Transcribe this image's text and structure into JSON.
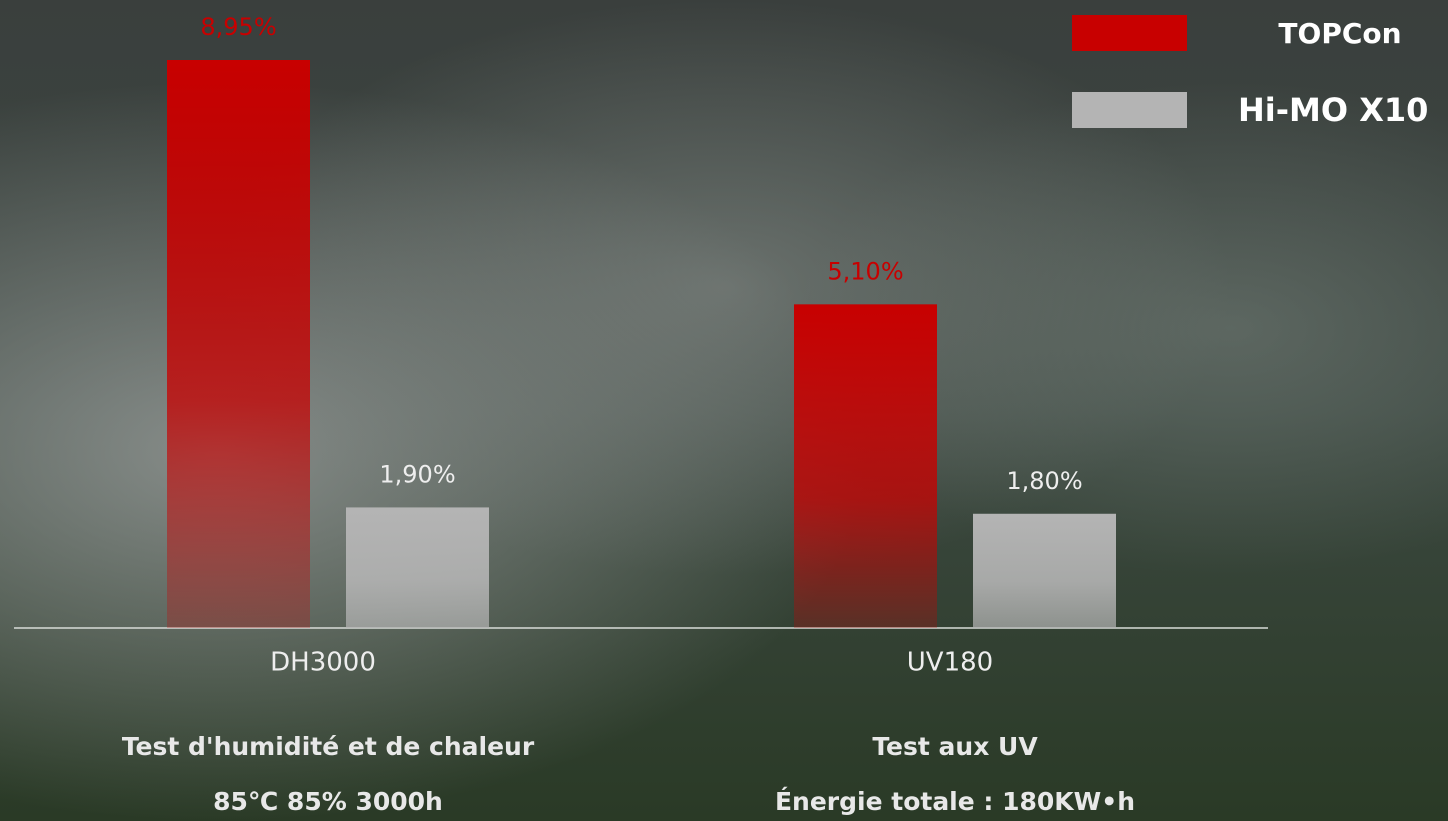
{
  "chart_data": {
    "type": "bar",
    "categories": [
      "DH3000",
      "UV180"
    ],
    "series": [
      {
        "name": "TOPCon",
        "color": "#c80000",
        "values": [
          8.95,
          5.1
        ],
        "value_labels": [
          "8,95%",
          "5,10%"
        ]
      },
      {
        "name": "Hi-MO X10",
        "color": "#b4b4b4",
        "values": [
          1.9,
          1.8
        ],
        "value_labels": [
          "1,90%",
          "1,80%"
        ]
      }
    ],
    "category_notes": [
      [
        "Test d'humidité et de chaleur",
        "85℃ 85% 3000h"
      ],
      [
        "Test aux UV",
        "Énergie totale : 180KW•h"
      ]
    ],
    "legend": "top-right"
  }
}
